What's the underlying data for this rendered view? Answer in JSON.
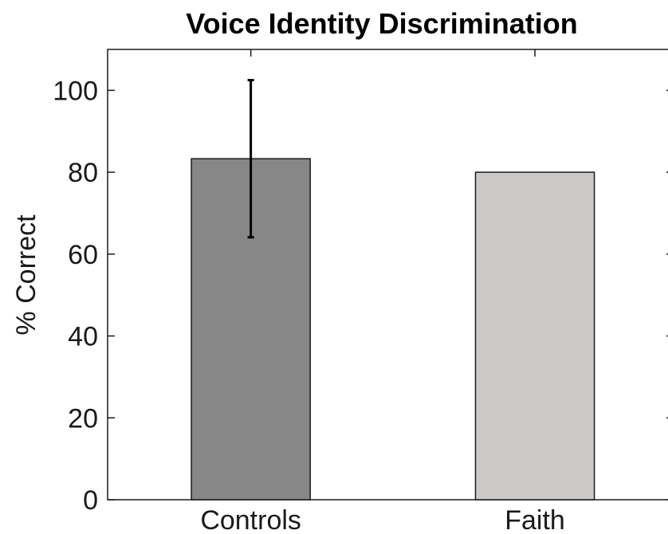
{
  "chart_data": {
    "type": "bar",
    "title": "Voice Identity Discrimination",
    "xlabel": "",
    "ylabel": "% Correct",
    "categories": [
      "Controls",
      "Faith"
    ],
    "values": [
      83.3,
      80.0
    ],
    "error": [
      19.2,
      null
    ],
    "ylim": [
      0,
      110
    ],
    "yticks": [
      0,
      20,
      40,
      60,
      80,
      100
    ],
    "ytick_labels": [
      "0",
      "20",
      "40",
      "60",
      "80",
      "100"
    ],
    "colors": [
      "#888787",
      "#cdc9c9"
    ],
    "grid": false,
    "legend": "none"
  }
}
